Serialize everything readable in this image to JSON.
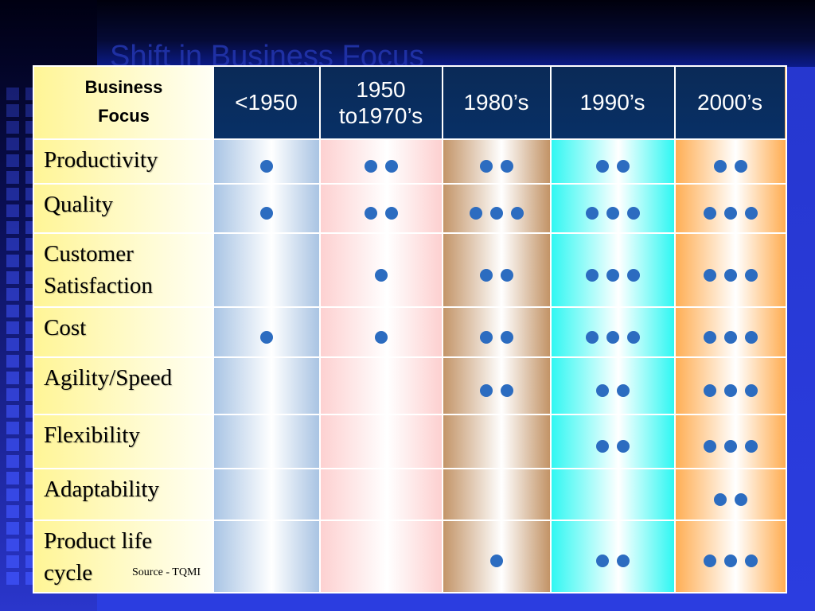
{
  "title": "Shift in Business Focus",
  "source": "Source - TQMI",
  "corner_header": [
    "Business",
    "Focus"
  ],
  "periods": [
    "<1950",
    "1950 to1970’s",
    "1980’s",
    "1990’s",
    "2000’s"
  ],
  "period_lines": [
    [
      "<1950"
    ],
    [
      "1950",
      "to1970’s"
    ],
    [
      "1980’s"
    ],
    [
      "1990’s"
    ],
    [
      "2000’s"
    ]
  ],
  "rows": [
    {
      "label": "Productivity",
      "lines": [
        "Productivity"
      ],
      "dots": [
        1,
        2,
        2,
        2,
        2
      ]
    },
    {
      "label": "Quality",
      "lines": [
        "Quality"
      ],
      "dots": [
        1,
        2,
        3,
        3,
        3
      ]
    },
    {
      "label": "Customer Satisfaction",
      "lines": [
        "Customer",
        "Satisfaction"
      ],
      "dots": [
        0,
        1,
        2,
        3,
        3
      ]
    },
    {
      "label": "Cost",
      "lines": [
        "Cost"
      ],
      "dots": [
        1,
        1,
        2,
        3,
        3
      ]
    },
    {
      "label": "Agility/Speed",
      "lines": [
        "Agility/Speed"
      ],
      "dots": [
        0,
        0,
        2,
        2,
        3
      ]
    },
    {
      "label": "Flexibility",
      "lines": [
        "Flexibility"
      ],
      "dots": [
        0,
        0,
        0,
        2,
        3
      ]
    },
    {
      "label": "Adaptability",
      "lines": [
        "Adaptability"
      ],
      "dots": [
        0,
        0,
        0,
        0,
        2
      ]
    },
    {
      "label": "Product life cycle",
      "lines": [
        "Product life",
        "cycle"
      ],
      "dots": [
        0,
        0,
        1,
        2,
        3
      ]
    }
  ],
  "colors": {
    "dot": "#2c6cc0",
    "header_bg": "#0a2a57",
    "slide_bg": "#2f3fd6"
  }
}
